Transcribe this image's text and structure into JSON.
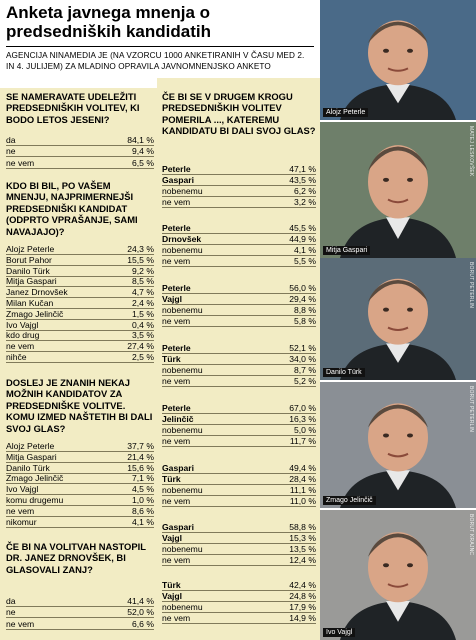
{
  "header": {
    "title": "Anketa javnega mnenja o predsedniških kandidatih",
    "subtitle": "AGENCIJA NINAMEDIA JE (NA VZORCU 1000 ANKETIRANIH V ČASU MED 2. IN 4. JULIJEM) ZA MLADINO OPRAVILA JAVNOMNENJSKO ANKETO"
  },
  "left": {
    "q1": {
      "question": "SE NAMERAVATE UDELEŽITI PREDSEDNIŠKIH VOLITEV, KI BODO LETOS JESENI?",
      "rows": [
        {
          "label": "da",
          "value": "84,1 %"
        },
        {
          "label": "ne",
          "value": "9,4 %"
        },
        {
          "label": "ne vem",
          "value": "6,5 %"
        }
      ]
    },
    "q2": {
      "question": "KDO BI BIL, PO VAŠEM MNENJU, NAJPRIMERNEJŠI PREDSEDNIŠKI KANDIDAT (ODPRTO VPRAŠANJE, SAMI NAVAJAJO)?",
      "rows": [
        {
          "label": "Alojz Peterle",
          "value": "24,3 %"
        },
        {
          "label": "Borut Pahor",
          "value": "15,5 %"
        },
        {
          "label": "Danilo Türk",
          "value": "9,2 %"
        },
        {
          "label": "Mitja Gaspari",
          "value": "8,5 %"
        },
        {
          "label": "Janez Drnovšek",
          "value": "4,7 %"
        },
        {
          "label": "Milan Kučan",
          "value": "2,4 %"
        },
        {
          "label": "Zmago Jelinčič",
          "value": "1,5 %"
        },
        {
          "label": "Ivo Vajgl",
          "value": "0,4 %"
        },
        {
          "label": "kdo drug",
          "value": "3,5 %"
        },
        {
          "label": "ne vem",
          "value": "27,4 %"
        },
        {
          "label": "nihče",
          "value": "2,5 %"
        }
      ]
    },
    "q3": {
      "question": "DOSLEJ JE ZNANIH NEKAJ MOŽNIH KANDIDATOV ZA PREDSEDNIŠKE VOLITVE. KOMU IZMED NAŠTETIH BI DALI SVOJ GLAS?",
      "rows": [
        {
          "label": "Alojz Peterle",
          "value": "37,7 %"
        },
        {
          "label": "Mitja Gaspari",
          "value": "21,4 %"
        },
        {
          "label": "Danilo Türk",
          "value": "15,6 %"
        },
        {
          "label": "Zmago Jelinčič",
          "value": "7,1 %"
        },
        {
          "label": "Ivo Vajgl",
          "value": "4,5 %"
        },
        {
          "label": "komu drugemu",
          "value": "1,0 %"
        },
        {
          "label": "ne vem",
          "value": "8,6 %"
        },
        {
          "label": "nikomur",
          "value": "4,1 %"
        }
      ]
    },
    "q4": {
      "question": "ČE BI NA VOLITVAH NASTOPIL DR. JANEZ DRNOVŠEK, BI GLASOVALI ZANJ?",
      "rows": [
        {
          "label": "da",
          "value": "41,4 %"
        },
        {
          "label": "ne",
          "value": "52,0 %"
        },
        {
          "label": "ne vem",
          "value": "6,6 %"
        }
      ]
    }
  },
  "mid": {
    "question": "ČE BI SE V DRUGEM KROGU PREDSEDNIŠKIH VOLITEV POMERILA ..., KATEREMU KANDIDATU BI DALI SVOJ GLAS?",
    "groups": [
      {
        "rows": [
          {
            "label": "Peterle",
            "value": "47,1 %"
          },
          {
            "label": "Gaspari",
            "value": "43,5 %"
          },
          {
            "label": "nobenemu",
            "value": "6,2 %"
          },
          {
            "label": "ne vem",
            "value": "3,2 %"
          }
        ]
      },
      {
        "rows": [
          {
            "label": "Peterle",
            "value": "45,5 %"
          },
          {
            "label": "Drnovšek",
            "value": "44,9 %"
          },
          {
            "label": "nobenemu",
            "value": "4,1 %"
          },
          {
            "label": "ne vem",
            "value": "5,5 %"
          }
        ]
      },
      {
        "rows": [
          {
            "label": "Peterle",
            "value": "56,0 %"
          },
          {
            "label": "Vajgl",
            "value": "29,4 %"
          },
          {
            "label": "nobenemu",
            "value": "8,8 %"
          },
          {
            "label": "ne vem",
            "value": "5,8 %"
          }
        ]
      },
      {
        "rows": [
          {
            "label": "Peterle",
            "value": "52,1 %"
          },
          {
            "label": "Türk",
            "value": "34,0 %"
          },
          {
            "label": "nobenemu",
            "value": "8,7 %"
          },
          {
            "label": "ne vem",
            "value": "5,2 %"
          }
        ]
      },
      {
        "rows": [
          {
            "label": "Peterle",
            "value": "67,0 %"
          },
          {
            "label": "Jelinčič",
            "value": "16,3 %"
          },
          {
            "label": "nobenemu",
            "value": "5,0 %"
          },
          {
            "label": "ne vem",
            "value": "11,7 %"
          }
        ]
      },
      {
        "rows": [
          {
            "label": "Gaspari",
            "value": "49,4 %"
          },
          {
            "label": "Türk",
            "value": "28,4 %"
          },
          {
            "label": "nobenemu",
            "value": "11,1 %"
          },
          {
            "label": "ne vem",
            "value": "11,0 %"
          }
        ]
      },
      {
        "rows": [
          {
            "label": "Gaspari",
            "value": "58,8 %"
          },
          {
            "label": "Vajgl",
            "value": "15,3 %"
          },
          {
            "label": "nobenemu",
            "value": "13,5 %"
          },
          {
            "label": "ne vem",
            "value": "12,4 %"
          }
        ]
      },
      {
        "rows": [
          {
            "label": "Türk",
            "value": "42,4 %"
          },
          {
            "label": "Vajgl",
            "value": "24,8 %"
          },
          {
            "label": "nobenemu",
            "value": "17,9 %"
          },
          {
            "label": "ne vem",
            "value": "14,9 %"
          }
        ]
      }
    ]
  },
  "photos": [
    {
      "caption": "Alojz Peterle",
      "credit": "",
      "bg": "#4a6a88"
    },
    {
      "caption": "Mitja Gaspari",
      "credit": "MATEJ LESKOVŠEK",
      "bg": "#6e7f6a"
    },
    {
      "caption": "Danilo Türk",
      "credit": "BORUT PETERLIN",
      "bg": "#5b6c78"
    },
    {
      "caption": "Zmago Jelinčič",
      "credit": "BORUT PETERLIN",
      "bg": "#8a8f95"
    },
    {
      "caption": "Ivo Vajgl",
      "credit": "BORUT KRAJNC",
      "bg": "#9a9a98"
    }
  ],
  "colors": {
    "panel": "#f2ecc4",
    "rule": "#807a5a"
  }
}
